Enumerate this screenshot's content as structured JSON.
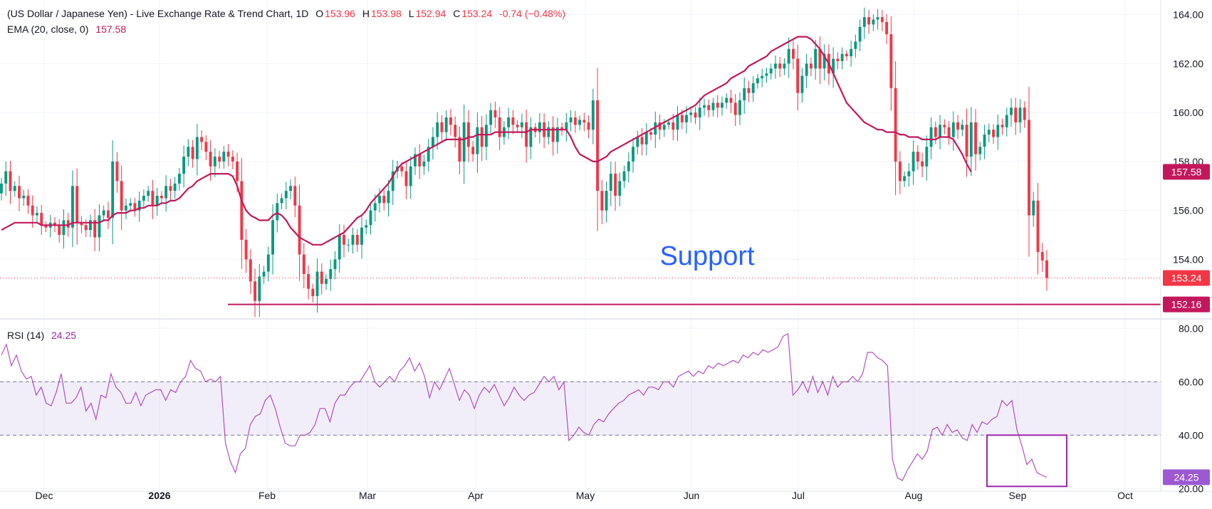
{
  "header": {
    "symbol_title": "(US Dollar / Japanese Yen) - Live Exchange Rate & Trend Chart, 1D",
    "open_label": "O",
    "open": "153.96",
    "high_label": "H",
    "high": "153.98",
    "low_label": "L",
    "low": "152.94",
    "close_label": "C",
    "close": "153.24",
    "change": "-0.74 (−0.48%)",
    "ema_label": "EMA (20, close, 0)",
    "ema_value": "157.58",
    "rsi_label": "RSI (14)",
    "rsi_value": "24.25"
  },
  "annotation": {
    "support_text": "Support"
  },
  "colors": {
    "up": "#089981",
    "down": "#f23645",
    "ema": "#c2185b",
    "rsi": "#9c27b0",
    "support": "#c2185b",
    "text": "#131722"
  },
  "price_labels": {
    "ema_tag": "157.58",
    "last_tag": "153.24",
    "support_tag": "152.16",
    "rsi_tag": "24.25"
  },
  "chart_data": [
    {
      "type": "candlestick",
      "title": "(US Dollar / Japanese Yen) - Live Exchange Rate & Trend Chart, 1D",
      "x_tick_labels": [
        "Dec",
        "2026",
        "Feb",
        "Mar",
        "Apr",
        "May",
        "Jun",
        "Jul",
        "Aug",
        "Sep",
        "Oct"
      ],
      "y_tick_labels": [
        "154.00",
        "156.00",
        "158.00",
        "160.00",
        "162.00",
        "164.00"
      ],
      "ylim": [
        151.8,
        164.6
      ],
      "grid": true,
      "ema_period": 20,
      "support_level": 152.16,
      "last_price": 153.24,
      "closes": [
        157.1,
        157.6,
        156.8,
        157.0,
        156.5,
        156.6,
        156.2,
        155.8,
        155.9,
        155.4,
        155.3,
        155.5,
        155.4,
        155.0,
        155.6,
        155.3,
        157.0,
        155.5,
        155.4,
        155.2,
        155.6,
        154.9,
        155.8,
        156.0,
        155.7,
        158.0,
        157.2,
        156.0,
        156.2,
        156.3,
        156.0,
        156.4,
        156.6,
        156.8,
        156.2,
        156.6,
        156.5,
        157.0,
        156.8,
        157.1,
        157.5,
        158.2,
        158.6,
        158.1,
        159.0,
        158.8,
        158.4,
        157.8,
        158.2,
        158.0,
        158.4,
        158.2,
        158.0,
        157.2,
        154.8,
        154.0,
        153.1,
        152.3,
        153.3,
        153.5,
        154.2,
        155.6,
        156.3,
        156.5,
        156.8,
        157.0,
        156.2,
        154.2,
        153.4,
        152.8,
        152.5,
        153.5,
        153.0,
        153.2,
        153.6,
        154.0,
        155.0,
        154.6,
        154.6,
        155.0,
        154.6,
        155.3,
        155.4,
        156.0,
        156.3,
        156.6,
        156.3,
        156.8,
        157.6,
        157.8,
        157.6,
        157.0,
        157.8,
        158.3,
        157.8,
        158.0,
        158.6,
        159.0,
        159.6,
        159.2,
        159.8,
        159.5,
        159.0,
        158.0,
        159.6,
        158.6,
        158.3,
        159.4,
        158.6,
        159.5,
        160.1,
        159.8,
        159.0,
        159.4,
        159.8,
        159.5,
        159.4,
        159.6,
        158.6,
        159.4,
        159.2,
        159.6,
        159.0,
        159.4,
        158.8,
        159.4,
        159.3,
        159.6,
        159.8,
        159.5,
        159.7,
        159.6,
        159.3,
        160.5,
        156.8,
        156.0,
        156.8,
        157.5,
        156.6,
        157.2,
        157.6,
        158.0,
        158.6,
        159.0,
        158.7,
        159.2,
        159.1,
        159.6,
        159.3,
        159.5,
        159.6,
        159.3,
        159.9,
        159.6,
        159.9,
        160.0,
        159.8,
        160.2,
        160.3,
        160.1,
        160.4,
        160.2,
        160.4,
        160.6,
        160.4,
        159.9,
        160.5,
        161.0,
        160.8,
        161.2,
        161.4,
        161.5,
        161.6,
        161.8,
        162.0,
        161.8,
        162.0,
        162.6,
        162.2,
        160.8,
        161.5,
        162.0,
        161.8,
        162.6,
        161.8,
        162.4,
        161.6,
        162.2,
        162.1,
        162.4,
        162.3,
        162.6,
        162.9,
        163.5,
        163.9,
        163.6,
        163.8,
        163.9,
        163.7,
        163.2,
        161.0,
        158.0,
        157.2,
        157.4,
        157.6,
        158.4,
        158.0,
        157.8,
        158.6,
        159.4,
        159.0,
        159.5,
        159.4,
        159.0,
        159.6,
        159.3,
        159.5,
        158.2,
        159.6,
        158.3,
        158.6,
        159.1,
        159.3,
        159.0,
        159.5,
        159.4,
        159.9,
        160.2,
        159.6,
        160.2,
        159.7,
        155.8,
        156.4,
        154.3,
        153.96,
        153.24
      ],
      "ema": [
        155.2,
        155.3,
        155.4,
        155.5,
        155.5,
        155.5,
        155.5,
        155.5,
        155.5,
        155.4,
        155.4,
        155.4,
        155.4,
        155.4,
        155.4,
        155.4,
        155.5,
        155.5,
        155.5,
        155.5,
        155.5,
        155.5,
        155.5,
        155.6,
        155.6,
        155.8,
        155.9,
        155.9,
        155.9,
        156.0,
        156.0,
        156.1,
        156.1,
        156.2,
        156.2,
        156.2,
        156.3,
        156.3,
        156.4,
        156.4,
        156.5,
        156.7,
        156.9,
        157.0,
        157.2,
        157.3,
        157.4,
        157.5,
        157.5,
        157.5,
        157.5,
        157.5,
        157.4,
        157.0,
        156.4,
        156.0,
        155.8,
        155.7,
        155.6,
        155.6,
        155.6,
        155.8,
        155.9,
        155.8,
        155.6,
        155.3,
        155.1,
        154.9,
        154.8,
        154.7,
        154.6,
        154.6,
        154.6,
        154.7,
        154.8,
        154.9,
        155.0,
        155.1,
        155.3,
        155.5,
        155.7,
        155.8,
        156.0,
        156.3,
        156.5,
        156.7,
        156.9,
        157.1,
        157.4,
        157.7,
        157.9,
        158.0,
        158.1,
        158.2,
        158.3,
        158.4,
        158.5,
        158.6,
        158.7,
        158.8,
        158.9,
        158.9,
        158.9,
        158.9,
        158.9,
        159.0,
        159.0,
        159.1,
        159.1,
        159.1,
        159.1,
        159.2,
        159.2,
        159.2,
        159.2,
        159.2,
        159.2,
        159.2,
        159.2,
        159.3,
        159.3,
        159.3,
        159.3,
        159.3,
        159.3,
        159.3,
        159.3,
        159.3,
        159.0,
        158.6,
        158.3,
        158.2,
        158.1,
        158.0,
        158.0,
        158.1,
        158.2,
        158.4,
        158.5,
        158.6,
        158.7,
        158.8,
        158.9,
        159.0,
        159.1,
        159.2,
        159.3,
        159.4,
        159.5,
        159.6,
        159.7,
        159.8,
        159.9,
        160.0,
        160.1,
        160.2,
        160.3,
        160.5,
        160.7,
        160.8,
        160.9,
        161.0,
        161.1,
        161.2,
        161.4,
        161.5,
        161.6,
        161.7,
        161.9,
        162.0,
        162.1,
        162.2,
        162.3,
        162.5,
        162.6,
        162.7,
        162.8,
        162.9,
        163.0,
        163.1,
        163.1,
        163.1,
        163.0,
        162.8,
        162.6,
        162.3,
        162.0,
        161.6,
        161.2,
        160.8,
        160.4,
        160.2,
        160.0,
        159.8,
        159.6,
        159.5,
        159.4,
        159.3,
        159.3,
        159.2,
        159.2,
        159.2,
        159.1,
        159.1,
        159.0,
        159.0,
        159.0,
        158.9,
        158.9,
        158.9,
        158.9,
        159.0,
        159.0,
        159.0,
        158.9,
        158.6,
        158.3,
        157.9,
        157.58
      ]
    },
    {
      "type": "line",
      "title": "RSI (14)",
      "series": [
        {
          "name": "RSI (14)",
          "values": [
            70.0,
            74,
            66,
            70,
            64,
            61,
            62,
            55,
            58,
            52,
            51,
            56,
            63,
            52,
            52,
            54,
            58,
            49,
            52,
            46,
            55,
            54,
            63,
            58,
            56,
            52,
            52,
            56,
            51,
            55,
            56,
            57,
            57,
            53,
            57,
            56,
            60,
            62,
            68,
            65,
            64,
            60,
            61,
            60,
            62,
            37,
            30,
            26,
            33,
            35,
            44,
            47,
            48,
            53,
            55,
            50,
            43,
            37,
            36,
            36,
            40,
            40,
            41,
            44,
            50,
            50,
            45,
            52,
            55,
            55,
            58,
            60,
            60,
            63,
            66,
            60,
            58,
            60,
            62,
            60,
            64,
            66,
            69,
            64,
            67,
            62,
            54,
            60,
            57,
            61,
            65,
            59,
            53,
            57,
            55,
            50,
            55,
            58,
            56,
            59,
            55,
            51,
            54,
            58,
            55,
            53,
            55,
            56,
            59,
            62,
            60,
            62,
            57,
            60,
            38,
            40,
            43,
            41,
            40,
            44,
            46,
            45,
            48,
            50,
            52,
            53,
            55,
            56,
            57,
            55,
            58,
            58,
            57,
            60,
            60,
            58,
            62,
            63,
            64,
            62,
            64,
            63,
            66,
            65,
            67,
            66,
            67,
            68,
            67,
            70,
            69,
            71,
            70,
            72,
            71,
            72,
            73,
            77,
            78,
            55,
            57,
            60,
            56,
            62,
            56,
            60,
            55,
            62,
            58,
            60,
            60,
            62,
            60,
            63,
            71,
            71,
            69,
            68,
            66,
            31,
            24,
            23,
            27,
            30,
            33,
            31,
            34,
            42,
            43,
            40,
            44,
            41,
            42,
            39,
            38,
            44,
            41,
            45,
            44,
            46,
            47,
            53,
            51,
            53,
            42,
            36,
            29,
            31,
            26,
            25,
            24.25
          ]
        }
      ],
      "y_tick_labels": [
        "20.00",
        "40.00",
        "60.00",
        "80.00"
      ],
      "ylim": [
        19,
        83
      ],
      "bands": [
        40,
        60
      ],
      "last_value": 24.25
    }
  ]
}
